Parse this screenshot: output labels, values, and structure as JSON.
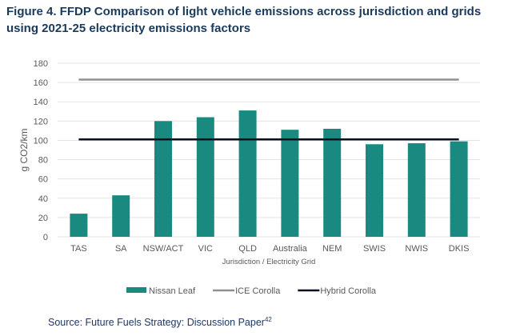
{
  "chart_data": {
    "type": "bar",
    "title": "Figure 4. FFDP Comparison of light vehicle emissions across jurisdiction and grids using 2021-25 electricity emissions factors",
    "xlabel": "Jurisdiction / Electricity Grid",
    "ylabel": "g CO2/km",
    "ylim": [
      0,
      180
    ],
    "yticks": [
      0,
      20,
      40,
      60,
      80,
      100,
      120,
      140,
      160,
      180
    ],
    "grid": true,
    "legend_position": "bottom",
    "categories": [
      "TAS",
      "SA",
      "NSW/ACT",
      "VIC",
      "QLD",
      "Australia",
      "NEM",
      "SWIS",
      "NWIS",
      "DKIS"
    ],
    "series": [
      {
        "name": "Nissan Leaf",
        "kind": "bar",
        "color": "#1a8a80",
        "values": [
          24,
          43,
          120,
          124,
          131,
          111,
          112,
          96,
          97,
          99
        ]
      },
      {
        "name": "ICE Corolla",
        "kind": "line",
        "color": "#909090",
        "values": [
          163,
          163,
          163,
          163,
          163,
          163,
          163,
          163,
          163,
          163
        ]
      },
      {
        "name": "Hybrid Corolla",
        "kind": "line",
        "color": "#0a0f1e",
        "values": [
          101,
          101,
          101,
          101,
          101,
          101,
          101,
          101,
          101,
          101
        ]
      }
    ]
  },
  "source": {
    "text": "Source: Future Fuels Strategy: Discussion Paper",
    "superscript": "42"
  }
}
